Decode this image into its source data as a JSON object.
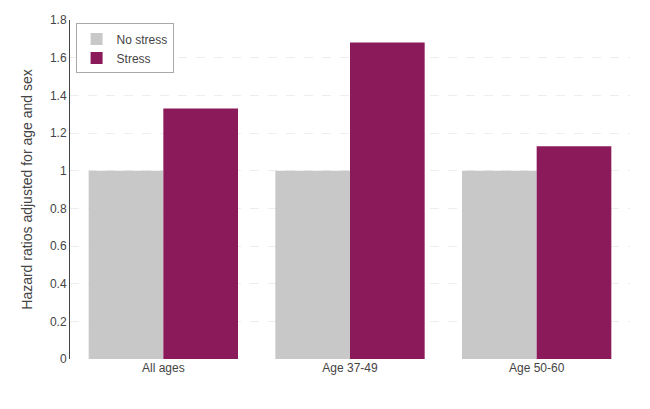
{
  "chart_data": {
    "type": "bar",
    "categories": [
      "All ages",
      "Age 37-49",
      "Age 50-60"
    ],
    "series": [
      {
        "name": "No stress",
        "color": "#c8c8c8",
        "values": [
          1.0,
          1.0,
          1.0
        ]
      },
      {
        "name": "Stress",
        "color": "#8b1a5a",
        "values": [
          1.33,
          1.68,
          1.13
        ]
      }
    ],
    "ylabel": "Hazard ratios adjusted for age and sex",
    "ylim": [
      0,
      1.8
    ],
    "yticks": [
      0,
      0.2,
      0.4,
      0.6,
      0.8,
      1,
      1.2,
      1.4,
      1.6,
      1.8
    ],
    "grid": true,
    "legend": "upper left"
  }
}
